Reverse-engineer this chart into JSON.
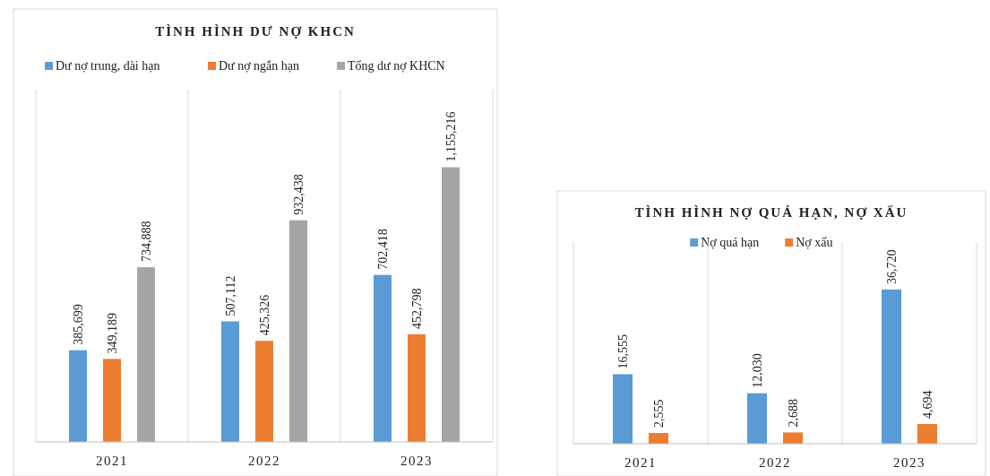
{
  "chart_data": [
    {
      "type": "bar",
      "title": "TÌNH HÌNH DƯ NỢ KHCN",
      "categories": [
        "2021",
        "2022",
        "2023"
      ],
      "legend": "top",
      "grid": "x",
      "series": [
        {
          "name": "Dư nợ trung, dài hạn",
          "color": "#5b9bd5",
          "values": [
            385699,
            507112,
            702418
          ],
          "value_labels": [
            "385,699",
            "507,112",
            "702,418"
          ]
        },
        {
          "name": "Dư nợ  ngắn hạn",
          "color": "#ed7d31",
          "values": [
            349189,
            425326,
            452798
          ],
          "value_labels": [
            "349,189",
            "425,326",
            "452,798"
          ]
        },
        {
          "name": "Tổng dư nợ KHCN",
          "color": "#a5a5a5",
          "values": [
            734888,
            932438,
            1155216
          ],
          "value_labels": [
            "734,888",
            "932,438",
            "1,155,216"
          ]
        }
      ]
    },
    {
      "type": "bar",
      "title": "TÌNH HÌNH NỢ QUÁ HẠN, NỢ XẤU",
      "categories": [
        "2021",
        "2022",
        "2023"
      ],
      "legend": "top",
      "grid": "x",
      "series": [
        {
          "name": "Nợ quá hạn",
          "color": "#5b9bd5",
          "values": [
            16555,
            12030,
            36720
          ],
          "value_labels": [
            "16,555",
            "12,030",
            "36,720"
          ]
        },
        {
          "name": "Nợ xấu",
          "color": "#ed7d31",
          "values": [
            2555,
            2688,
            4694
          ],
          "value_labels": [
            "2,555",
            "2,688",
            "4,694"
          ]
        }
      ]
    }
  ]
}
